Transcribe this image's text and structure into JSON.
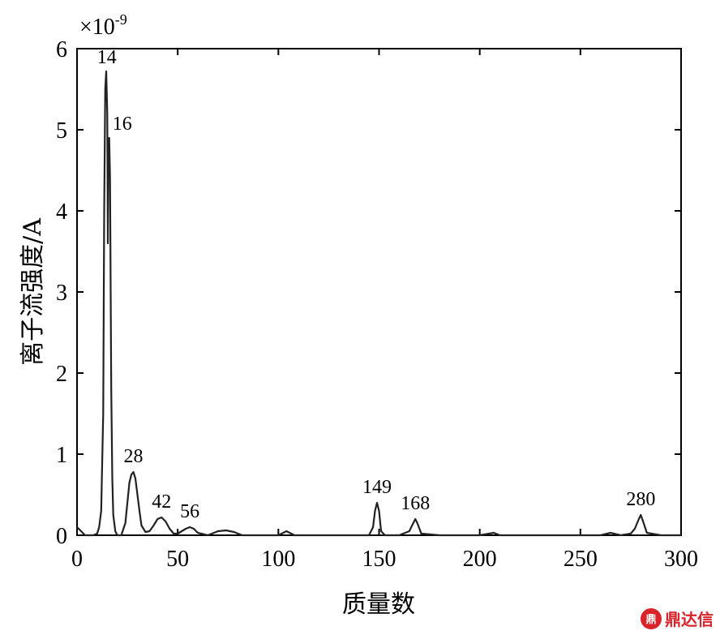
{
  "chart_data": {
    "type": "line",
    "xlabel": "质量数",
    "ylabel": "离子流强度/A",
    "y_scale_base": "×10",
    "y_scale_exponent": "-9",
    "xlim": [
      0,
      300
    ],
    "ylim": [
      0,
      6
    ],
    "xticks": [
      0,
      50,
      100,
      150,
      200,
      250,
      300
    ],
    "yticks": [
      0,
      1,
      2,
      3,
      4,
      5,
      6
    ],
    "grid": false,
    "x": [
      0,
      2,
      4,
      6,
      8,
      10,
      11,
      12,
      13,
      13.5,
      14,
      14.5,
      15,
      15.3,
      15.6,
      16,
      16.4,
      17,
      17.5,
      18,
      19,
      20,
      22,
      24,
      25,
      26,
      27,
      28,
      29,
      30,
      31,
      32,
      34,
      36,
      38,
      40,
      42,
      44,
      46,
      48,
      50,
      52,
      54,
      56,
      58,
      60,
      65,
      70,
      74,
      78,
      82,
      90,
      100,
      104,
      108,
      112,
      120,
      130,
      140,
      145,
      147,
      148,
      149,
      150,
      151,
      153,
      160,
      165,
      167,
      168,
      169,
      171,
      180,
      200,
      207,
      210,
      220,
      240,
      260,
      265,
      270,
      275,
      277,
      279,
      280,
      281,
      283,
      290,
      300
    ],
    "y": [
      0.1,
      0.05,
      0.0,
      0.0,
      0.0,
      0.02,
      0.1,
      0.3,
      1.5,
      4.0,
      5.5,
      5.72,
      5.2,
      3.6,
      4.8,
      4.9,
      4.4,
      1.8,
      0.7,
      0.25,
      0.05,
      0.0,
      0.0,
      0.15,
      0.4,
      0.65,
      0.75,
      0.78,
      0.7,
      0.5,
      0.3,
      0.12,
      0.04,
      0.05,
      0.12,
      0.2,
      0.22,
      0.17,
      0.08,
      0.02,
      0.02,
      0.05,
      0.08,
      0.1,
      0.08,
      0.03,
      0.0,
      0.05,
      0.06,
      0.04,
      0.0,
      0.0,
      0.0,
      0.05,
      0.0,
      0.0,
      0.0,
      0.0,
      0.0,
      0.0,
      0.1,
      0.3,
      0.4,
      0.3,
      0.05,
      0.0,
      0.0,
      0.05,
      0.15,
      0.2,
      0.15,
      0.02,
      0.0,
      0.0,
      0.03,
      0.0,
      0.0,
      0.0,
      0.0,
      0.03,
      0.0,
      0.02,
      0.08,
      0.2,
      0.25,
      0.18,
      0.03,
      0.0,
      0.0
    ],
    "peak_labels": [
      {
        "text": "14",
        "x": 14,
        "y": 5.72
      },
      {
        "text": "16",
        "x": 16,
        "y": 4.9
      },
      {
        "text": "28",
        "x": 28,
        "y": 0.78
      },
      {
        "text": "42",
        "x": 42,
        "y": 0.22
      },
      {
        "text": "56",
        "x": 56,
        "y": 0.1
      },
      {
        "text": "149",
        "x": 149,
        "y": 0.4
      },
      {
        "text": "168",
        "x": 168,
        "y": 0.2
      },
      {
        "text": "280",
        "x": 280,
        "y": 0.25
      }
    ]
  },
  "watermark": {
    "icon_text": "鼎",
    "text": "鼎达信"
  },
  "colors": {
    "line": "#222222",
    "watermark": "#d8232a"
  }
}
